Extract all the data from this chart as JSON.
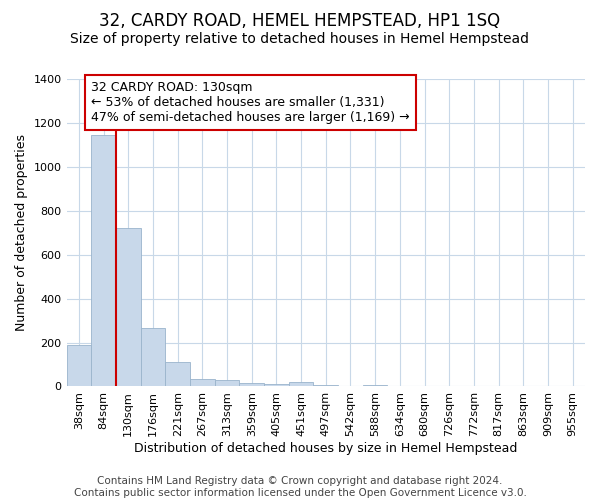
{
  "title": "32, CARDY ROAD, HEMEL HEMPSTEAD, HP1 1SQ",
  "subtitle": "Size of property relative to detached houses in Hemel Hempstead",
  "xlabel": "Distribution of detached houses by size in Hemel Hempstead",
  "ylabel": "Number of detached properties",
  "footer_line1": "Contains HM Land Registry data © Crown copyright and database right 2024.",
  "footer_line2": "Contains public sector information licensed under the Open Government Licence v3.0.",
  "annotation_title": "32 CARDY ROAD: 130sqm",
  "annotation_line1": "← 53% of detached houses are smaller (1,331)",
  "annotation_line2": "47% of semi-detached houses are larger (1,169) →",
  "property_size_bin_index": 2,
  "categories": [
    "38sqm",
    "84sqm",
    "130sqm",
    "176sqm",
    "221sqm",
    "267sqm",
    "313sqm",
    "359sqm",
    "405sqm",
    "451sqm",
    "497sqm",
    "542sqm",
    "588sqm",
    "634sqm",
    "680sqm",
    "726sqm",
    "772sqm",
    "817sqm",
    "863sqm",
    "909sqm",
    "955sqm"
  ],
  "values": [
    190,
    1145,
    720,
    265,
    110,
    35,
    28,
    15,
    10,
    20,
    5,
    0,
    5,
    0,
    0,
    0,
    0,
    0,
    0,
    0,
    0
  ],
  "bar_color": "#c8d8ea",
  "bar_edge_color": "#9ab4cc",
  "highlight_line_color": "#cc0000",
  "background_color": "#ffffff",
  "grid_color": "#c8d8e8",
  "ylim": [
    0,
    1400
  ],
  "yticks": [
    0,
    200,
    400,
    600,
    800,
    1000,
    1200,
    1400
  ],
  "title_fontsize": 12,
  "subtitle_fontsize": 10,
  "axis_label_fontsize": 9,
  "tick_fontsize": 8,
  "annotation_fontsize": 9,
  "footer_fontsize": 7.5
}
